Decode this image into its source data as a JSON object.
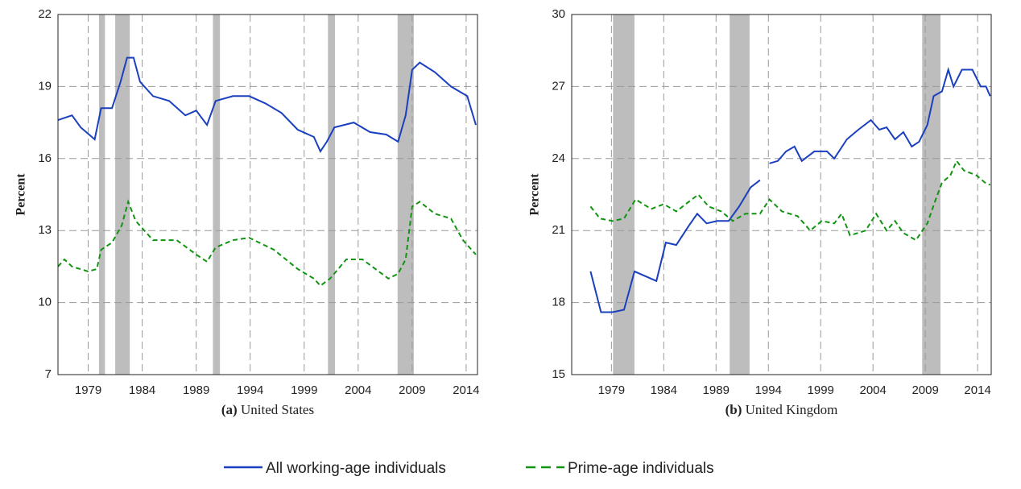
{
  "chart_data": [
    {
      "type": "line",
      "ylabel": "Percent",
      "caption_label": "(a)",
      "caption": "United States",
      "xlim": [
        1976.2,
        2015.05
      ],
      "ylim": [
        7,
        22
      ],
      "xticks": [
        1979,
        1984,
        1989,
        1994,
        1999,
        2004,
        2009,
        2014
      ],
      "yticks": [
        7,
        10,
        13,
        16,
        19,
        22
      ],
      "grid": true,
      "recessions": [
        [
          1980.0,
          1980.55
        ],
        [
          1981.5,
          1982.85
        ],
        [
          1990.55,
          1991.2
        ],
        [
          2001.2,
          2001.85
        ],
        [
          2007.65,
          2009.15
        ]
      ],
      "recession_color": "#bdbdbd",
      "series": [
        {
          "name": "All working-age individuals",
          "color": "#1a3fbf",
          "dash": false,
          "x": [
            1976.2,
            1977.5,
            1978.3,
            1979.6,
            1980.2,
            1981.2,
            1982.0,
            1982.6,
            1983.2,
            1983.8,
            1985.0,
            1986.5,
            1988.0,
            1989.0,
            1990.0,
            1990.8,
            1992.4,
            1993.9,
            1995.4,
            1996.9,
            1998.4,
            1999.9,
            2000.5,
            2001.1,
            2001.8,
            2003.6,
            2005.1,
            2006.6,
            2007.7,
            2008.4,
            2009.0,
            2009.7,
            2011.1,
            2012.6,
            2014.1,
            2014.9
          ],
          "values": [
            17.6,
            17.8,
            17.3,
            16.8,
            18.1,
            18.1,
            19.2,
            20.2,
            20.2,
            19.2,
            18.6,
            18.4,
            17.8,
            18.0,
            17.4,
            18.4,
            18.6,
            18.6,
            18.3,
            17.9,
            17.2,
            16.9,
            16.3,
            16.7,
            17.3,
            17.5,
            17.1,
            17.0,
            16.7,
            17.8,
            19.7,
            20.0,
            19.6,
            19.0,
            18.6,
            17.4
          ]
        },
        {
          "name": "Prime-age individuals",
          "color": "#119411",
          "dash": true,
          "x": [
            1976.2,
            1976.8,
            1977.5,
            1979.0,
            1979.8,
            1980.2,
            1981.2,
            1982.1,
            1982.7,
            1983.4,
            1985.0,
            1987.2,
            1989.0,
            1990.0,
            1990.8,
            1992.4,
            1993.9,
            1996.2,
            1998.4,
            1999.9,
            2000.5,
            2001.4,
            2002.9,
            2004.4,
            2005.9,
            2006.8,
            2007.7,
            2008.4,
            2009.0,
            2009.7,
            2011.1,
            2012.6,
            2013.7,
            2014.9
          ],
          "values": [
            11.5,
            11.8,
            11.5,
            11.3,
            11.4,
            12.2,
            12.5,
            13.2,
            14.2,
            13.4,
            12.6,
            12.6,
            12.0,
            11.7,
            12.3,
            12.6,
            12.7,
            12.2,
            11.4,
            11.0,
            10.7,
            11.0,
            11.8,
            11.8,
            11.3,
            11.0,
            11.2,
            11.8,
            14.0,
            14.2,
            13.7,
            13.5,
            12.6,
            12.0
          ]
        }
      ]
    },
    {
      "type": "line",
      "ylabel": "Percent",
      "caption_label": "(b)",
      "caption": "United Kingdom",
      "xlim": [
        1975.2,
        2015.3
      ],
      "ylim": [
        15,
        30
      ],
      "xticks": [
        1979,
        1984,
        1989,
        1994,
        1999,
        2004,
        2009,
        2014
      ],
      "yticks": [
        15,
        18,
        21,
        24,
        27,
        30
      ],
      "grid": true,
      "recessions": [
        [
          1979.15,
          1981.2
        ],
        [
          1990.3,
          1992.2
        ],
        [
          2008.7,
          2010.45
        ]
      ],
      "recession_color": "#bdbdbd",
      "series": [
        {
          "name": "All working-age individuals",
          "color": "#1a3fbf",
          "dash": false,
          "x": [
            1977.0,
            1978.0,
            1979.1,
            1980.2,
            1981.2,
            1983.3,
            1984.2,
            1985.2,
            1986.4,
            1987.2,
            1988.1,
            1989.1,
            1990.2,
            1991.2,
            1992.3,
            1993.2,
            1993.6,
            1994.1,
            1994.9,
            1995.7,
            1996.5,
            1997.2,
            1998.4,
            1999.6,
            2000.3,
            2001.5,
            2002.6,
            2003.8,
            2004.6,
            2005.3,
            2006.1,
            2006.9,
            2007.7,
            2008.4,
            2009.2,
            2009.8,
            2010.6,
            2011.2,
            2011.7,
            2012.5,
            2013.5,
            2014.3,
            2014.8,
            2015.2
          ],
          "values": [
            19.3,
            17.6,
            17.6,
            17.7,
            19.3,
            18.9,
            20.5,
            20.4,
            21.2,
            21.7,
            21.3,
            21.4,
            21.4,
            22.0,
            22.8,
            23.1,
            null,
            23.8,
            23.9,
            24.3,
            24.5,
            23.9,
            24.3,
            24.3,
            24.0,
            24.8,
            25.2,
            25.6,
            25.2,
            25.3,
            24.8,
            25.1,
            24.5,
            24.7,
            25.4,
            26.6,
            26.8,
            27.7,
            27.0,
            27.7,
            27.7,
            27.0,
            27.0,
            26.6
          ]
        },
        {
          "name": "Prime-age individuals",
          "color": "#119411",
          "dash": true,
          "x": [
            1977.0,
            1977.9,
            1979.1,
            1980.2,
            1981.3,
            1982.8,
            1984.0,
            1985.2,
            1986.4,
            1987.3,
            1988.3,
            1989.5,
            1990.6,
            1991.8,
            1993.2,
            1994.1,
            1995.3,
            1996.8,
            1998.0,
            1999.1,
            2000.3,
            2001.0,
            2001.8,
            2003.3,
            2004.3,
            2005.3,
            2006.1,
            2006.9,
            2008.1,
            2009.2,
            2010.0,
            2010.6,
            2011.4,
            2012.0,
            2012.7,
            2013.9,
            2014.7,
            2015.2
          ],
          "values": [
            22.0,
            21.5,
            21.4,
            21.5,
            22.3,
            21.9,
            22.1,
            21.8,
            22.2,
            22.5,
            22.0,
            21.8,
            21.4,
            21.7,
            21.7,
            22.3,
            21.8,
            21.6,
            21.0,
            21.4,
            21.3,
            21.7,
            20.8,
            21.0,
            21.7,
            21.0,
            21.4,
            20.9,
            20.6,
            21.3,
            22.3,
            23.0,
            23.3,
            23.9,
            23.5,
            23.3,
            23.0,
            22.9
          ]
        }
      ]
    }
  ]
}
